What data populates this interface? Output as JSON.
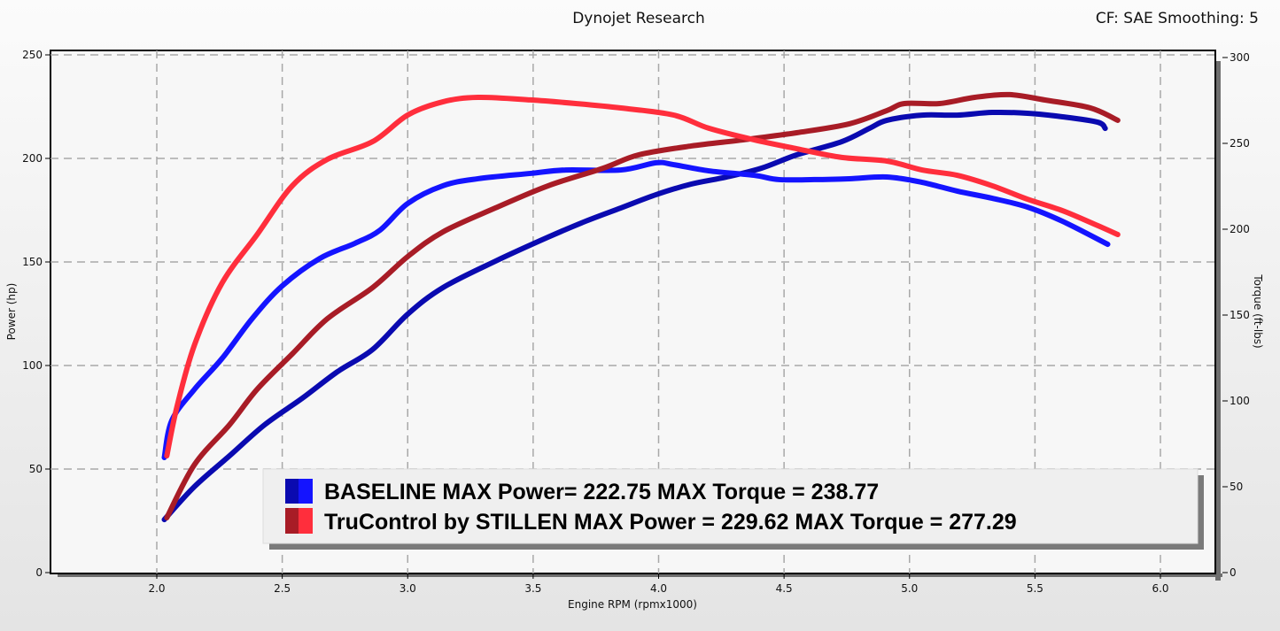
{
  "header": {
    "title": "Dynojet Research",
    "correction": "CF: SAE Smoothing: 5"
  },
  "chart_data": {
    "type": "line",
    "title": "Dynojet Research",
    "xlabel": "Engine RPM (rpmx1000)",
    "ylabel": "Power (hp)",
    "y2label": "Torque (ft-lbs)",
    "xlim": [
      1.6,
      6.2
    ],
    "ylim": [
      0,
      250
    ],
    "y2lim": [
      0,
      300
    ],
    "xticks": [
      "2.0",
      "2.5",
      "3.0",
      "3.5",
      "4.0",
      "4.5",
      "5.0",
      "5.5",
      "6.0"
    ],
    "yticks": [
      "0",
      "50",
      "100",
      "150",
      "200",
      "250"
    ],
    "y2ticks": [
      "0",
      "50",
      "100",
      "150",
      "200",
      "250",
      "300"
    ],
    "grid": true,
    "legend_position": "bottom-center",
    "legend": [
      {
        "label": "BASELINE MAX Power= 222.75 MAX Torque = 238.77",
        "colors": [
          "#0a0ab0",
          "#1414ff"
        ]
      },
      {
        "label": "TruControl by STILLEN MAX Power = 229.62 MAX Torque = 277.29",
        "colors": [
          "#a81c26",
          "#ff2e3c"
        ]
      }
    ],
    "series": [
      {
        "run": "BASELINE",
        "measure": "power",
        "axis": "left",
        "color": "#0a0ab0",
        "x": [
          2.03,
          2.15,
          2.29,
          2.43,
          2.58,
          2.72,
          2.86,
          3.0,
          3.14,
          3.35,
          3.56,
          3.71,
          3.85,
          3.99,
          4.13,
          4.27,
          4.41,
          4.55,
          4.73,
          4.84,
          4.91,
          5.05,
          5.19,
          5.33,
          5.47,
          5.61,
          5.75,
          5.78
        ],
        "y": [
          25.6,
          41.5,
          56.4,
          71.4,
          84.2,
          97.0,
          107.7,
          124.8,
          137.6,
          150.4,
          162.0,
          169.7,
          176.1,
          182.5,
          187.6,
          191.0,
          195.3,
          201.7,
          208.1,
          214.5,
          218.4,
          220.9,
          220.9,
          222.2,
          221.8,
          220.1,
          217.5,
          214.5
        ]
      },
      {
        "run": "BASELINE",
        "measure": "torque",
        "axis": "right",
        "color": "#1414ff",
        "x": [
          2.03,
          2.06,
          2.15,
          2.26,
          2.38,
          2.5,
          2.65,
          2.79,
          2.89,
          3.0,
          3.14,
          3.28,
          3.49,
          3.63,
          3.85,
          3.99,
          4.06,
          4.2,
          4.38,
          4.48,
          4.62,
          4.76,
          4.91,
          5.05,
          5.19,
          5.33,
          5.47,
          5.61,
          5.79
        ],
        "y": [
          67.0,
          88.7,
          106.7,
          124.7,
          147.9,
          167.0,
          183.0,
          191.8,
          199.5,
          215.0,
          225.3,
          229.4,
          232.5,
          234.5,
          234.5,
          238.7,
          237.6,
          234.0,
          231.4,
          228.9,
          228.9,
          229.4,
          230.4,
          227.3,
          222.2,
          218.0,
          212.9,
          204.6,
          191.2
        ]
      },
      {
        "run": "TruControl by STILLEN",
        "measure": "power",
        "axis": "left",
        "color": "#a81c26",
        "x": [
          2.04,
          2.15,
          2.29,
          2.4,
          2.54,
          2.68,
          2.86,
          3.0,
          3.14,
          3.35,
          3.56,
          3.78,
          3.92,
          4.13,
          4.34,
          4.55,
          4.76,
          4.91,
          4.98,
          5.12,
          5.26,
          5.4,
          5.54,
          5.72,
          5.83
        ],
        "y": [
          26.5,
          52.1,
          71.4,
          88.5,
          105.6,
          122.6,
          137.6,
          152.6,
          164.5,
          176.1,
          186.8,
          195.3,
          201.7,
          206.0,
          209.0,
          212.4,
          216.7,
          223.1,
          226.5,
          226.5,
          229.5,
          230.8,
          228.2,
          224.4,
          218.4
        ]
      },
      {
        "run": "TruControl by STILLEN",
        "measure": "torque",
        "axis": "right",
        "color": "#ff2e3c",
        "x": [
          2.04,
          2.08,
          2.15,
          2.26,
          2.4,
          2.54,
          2.68,
          2.86,
          3.0,
          3.14,
          3.28,
          3.49,
          3.67,
          3.85,
          4.06,
          4.2,
          4.38,
          4.55,
          4.73,
          4.91,
          5.05,
          5.19,
          5.33,
          5.47,
          5.61,
          5.75,
          5.83
        ],
        "y": [
          68.0,
          96.4,
          132.5,
          168.6,
          196.9,
          225.3,
          240.7,
          251.0,
          266.5,
          274.2,
          276.8,
          275.3,
          273.2,
          270.6,
          266.5,
          258.8,
          252.1,
          246.9,
          241.8,
          239.7,
          234.5,
          231.4,
          225.3,
          217.5,
          210.8,
          202.1,
          196.9
        ]
      }
    ]
  }
}
